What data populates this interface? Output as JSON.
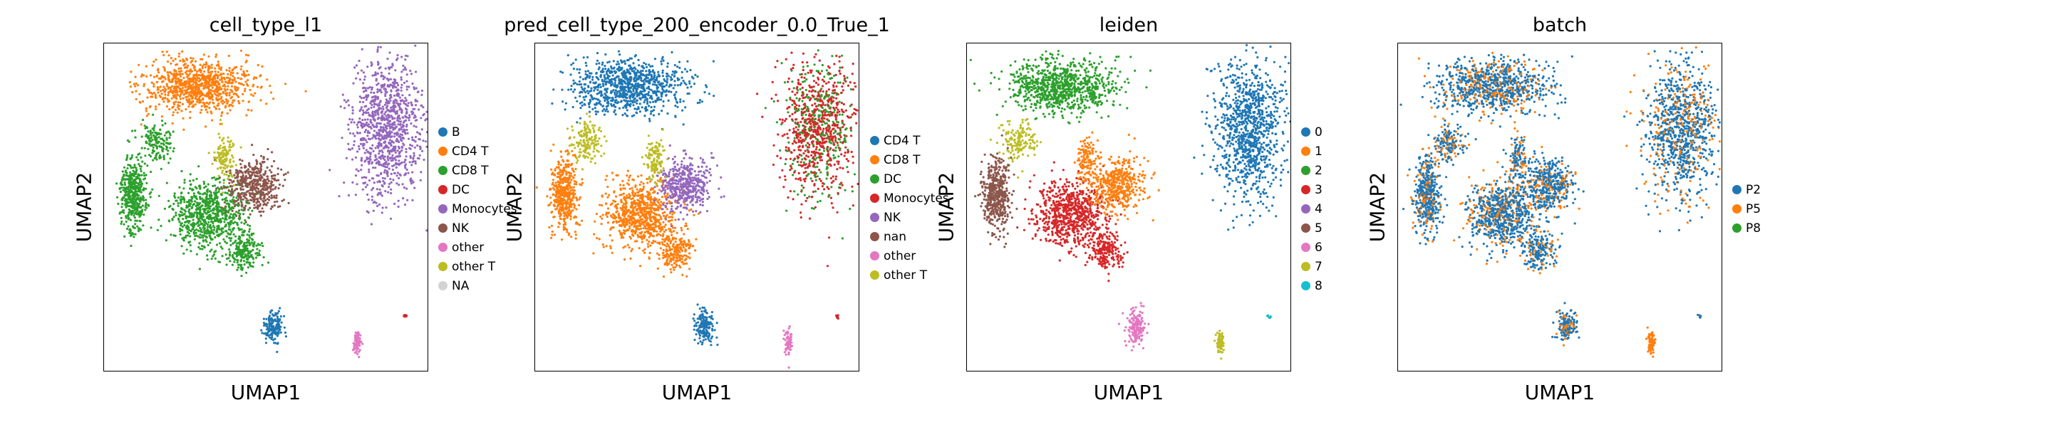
{
  "panels": [
    {
      "title": "cell_type_l1",
      "xlabel": "UMAP1",
      "ylabel": "UMAP2",
      "legend": [
        {
          "label": "B",
          "color": "#1f77b4"
        },
        {
          "label": "CD4 T",
          "color": "#ff7f0e"
        },
        {
          "label": "CD8 T",
          "color": "#2ca02c"
        },
        {
          "label": "DC",
          "color": "#d62728"
        },
        {
          "label": "Monocytes",
          "color": "#9467bd"
        },
        {
          "label": "NK",
          "color": "#8c564b"
        },
        {
          "label": "other",
          "color": "#e377c2"
        },
        {
          "label": "other T",
          "color": "#bcbd22"
        },
        {
          "label": "NA",
          "color": "#d3d3d3"
        }
      ]
    },
    {
      "title": "pred_cell_type_200_encoder_0.0_True_1",
      "xlabel": "UMAP1",
      "ylabel": "UMAP2",
      "legend": [
        {
          "label": "CD4 T",
          "color": "#1f77b4"
        },
        {
          "label": "CD8 T",
          "color": "#ff7f0e"
        },
        {
          "label": "DC",
          "color": "#2ca02c"
        },
        {
          "label": "Monocytes",
          "color": "#d62728"
        },
        {
          "label": "NK",
          "color": "#9467bd"
        },
        {
          "label": "nan",
          "color": "#8c564b"
        },
        {
          "label": "other",
          "color": "#e377c2"
        },
        {
          "label": "other T",
          "color": "#bcbd22"
        }
      ]
    },
    {
      "title": "leiden",
      "xlabel": "UMAP1",
      "ylabel": "UMAP2",
      "legend": [
        {
          "label": "0",
          "color": "#1f77b4"
        },
        {
          "label": "1",
          "color": "#ff7f0e"
        },
        {
          "label": "2",
          "color": "#2ca02c"
        },
        {
          "label": "3",
          "color": "#d62728"
        },
        {
          "label": "4",
          "color": "#9467bd"
        },
        {
          "label": "5",
          "color": "#8c564b"
        },
        {
          "label": "6",
          "color": "#e377c2"
        },
        {
          "label": "7",
          "color": "#bcbd22"
        },
        {
          "label": "8",
          "color": "#17becf"
        }
      ]
    },
    {
      "title": "batch",
      "xlabel": "UMAP1",
      "ylabel": "UMAP2",
      "legend": [
        {
          "label": "P2",
          "color": "#1f77b4"
        },
        {
          "label": "P5",
          "color": "#ff7f0e"
        },
        {
          "label": "P8",
          "color": "#2ca02c"
        }
      ]
    }
  ],
  "chart_data": [
    {
      "type": "scatter",
      "title": "cell_type_l1",
      "xlabel": "UMAP1",
      "ylabel": "UMAP2",
      "categories": [
        "B",
        "CD4 T",
        "CD8 T",
        "DC",
        "Monocytes",
        "NK",
        "other",
        "other T",
        "NA"
      ],
      "grid": false,
      "legend_position": "right"
    },
    {
      "type": "scatter",
      "title": "pred_cell_type_200_encoder_0.0_True_1",
      "xlabel": "UMAP1",
      "ylabel": "UMAP2",
      "categories": [
        "CD4 T",
        "CD8 T",
        "DC",
        "Monocytes",
        "NK",
        "nan",
        "other",
        "other T"
      ],
      "grid": false,
      "legend_position": "right"
    },
    {
      "type": "scatter",
      "title": "leiden",
      "xlabel": "UMAP1",
      "ylabel": "UMAP2",
      "categories": [
        "0",
        "1",
        "2",
        "3",
        "4",
        "5",
        "6",
        "7",
        "8"
      ],
      "grid": false,
      "legend_position": "right"
    },
    {
      "type": "scatter",
      "title": "batch",
      "xlabel": "UMAP1",
      "ylabel": "UMAP2",
      "categories": [
        "P2",
        "P5",
        "P8"
      ],
      "grid": false,
      "legend_position": "right"
    }
  ]
}
